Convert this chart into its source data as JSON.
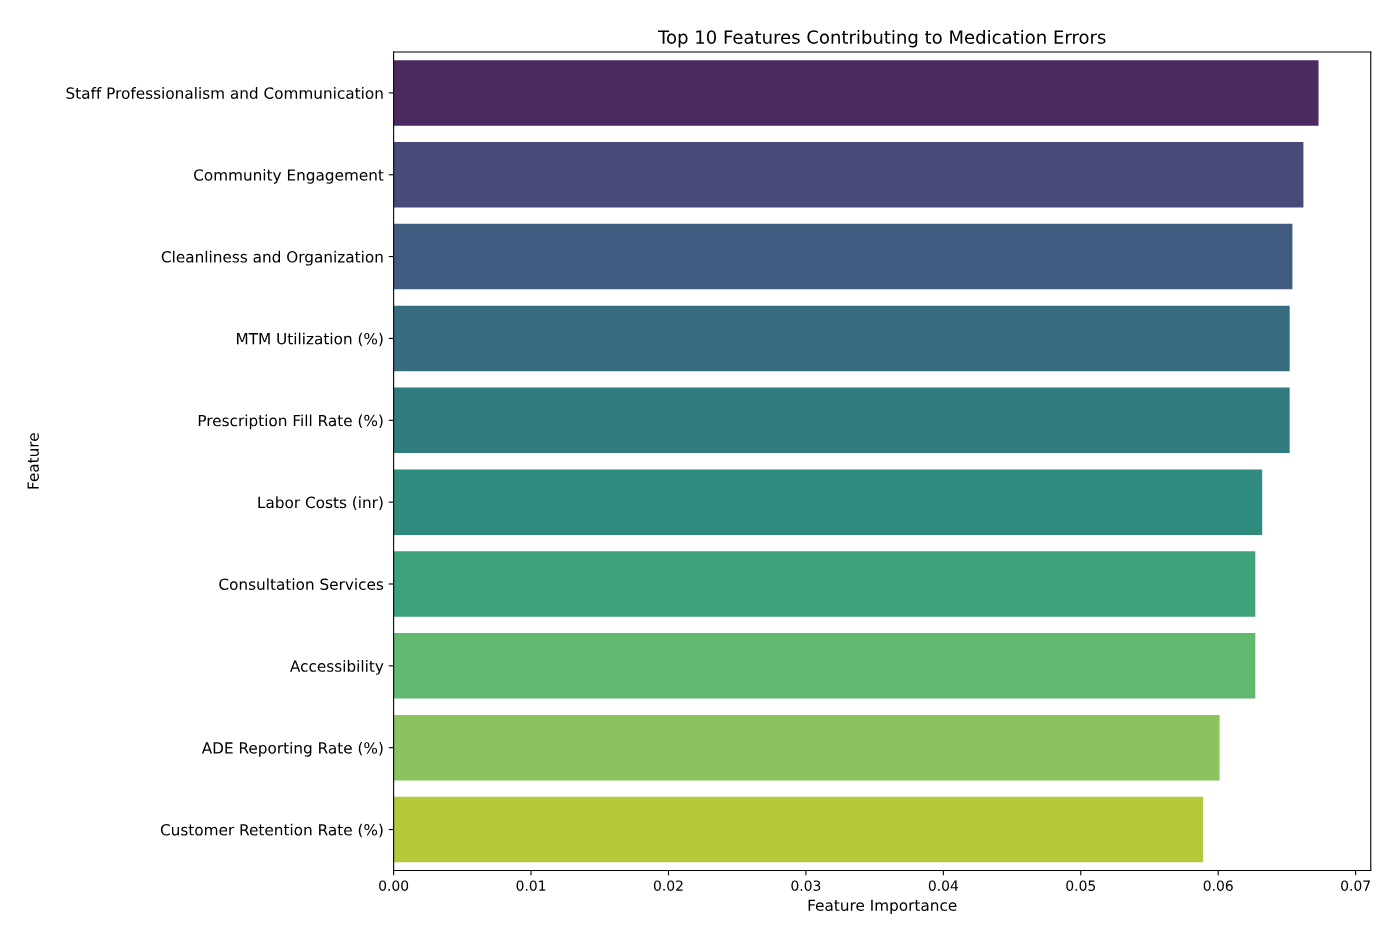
{
  "chart_data": {
    "type": "bar",
    "orientation": "horizontal",
    "title": "Top 10 Features Contributing to Medication Errors",
    "xlabel": "Feature Importance",
    "ylabel": "Feature",
    "categories": [
      "Staff Professionalism and Communication",
      "Community Engagement",
      "Cleanliness and Organization",
      "MTM Utilization (%)",
      "Prescription Fill Rate (%)",
      "Labor Costs (inr)",
      "Consultation Services",
      "Accessibility",
      "ADE Reporting Rate (%)",
      "Customer Retention Rate (%)"
    ],
    "values": [
      0.0673,
      0.0662,
      0.0654,
      0.0652,
      0.0652,
      0.0632,
      0.0627,
      0.0627,
      0.0601,
      0.0589
    ],
    "colors": [
      "#4b2a62",
      "#4a4a7a",
      "#425b80",
      "#386c80",
      "#307b7e",
      "#2e8b7e",
      "#3ca279",
      "#62b870",
      "#8bc35e",
      "#b4c83a"
    ],
    "xlim": [
      0,
      0.0711
    ],
    "xticks": [
      {
        "value": 0,
        "label": "0.00"
      },
      {
        "value": 0.01,
        "label": "0.01"
      },
      {
        "value": 0.02,
        "label": "0.02"
      },
      {
        "value": 0.03,
        "label": "0.03"
      },
      {
        "value": 0.04,
        "label": "0.04"
      },
      {
        "value": 0.05,
        "label": "0.05"
      },
      {
        "value": 0.06,
        "label": "0.06"
      },
      {
        "value": 0.07,
        "label": "0.07"
      }
    ],
    "grid": false
  }
}
